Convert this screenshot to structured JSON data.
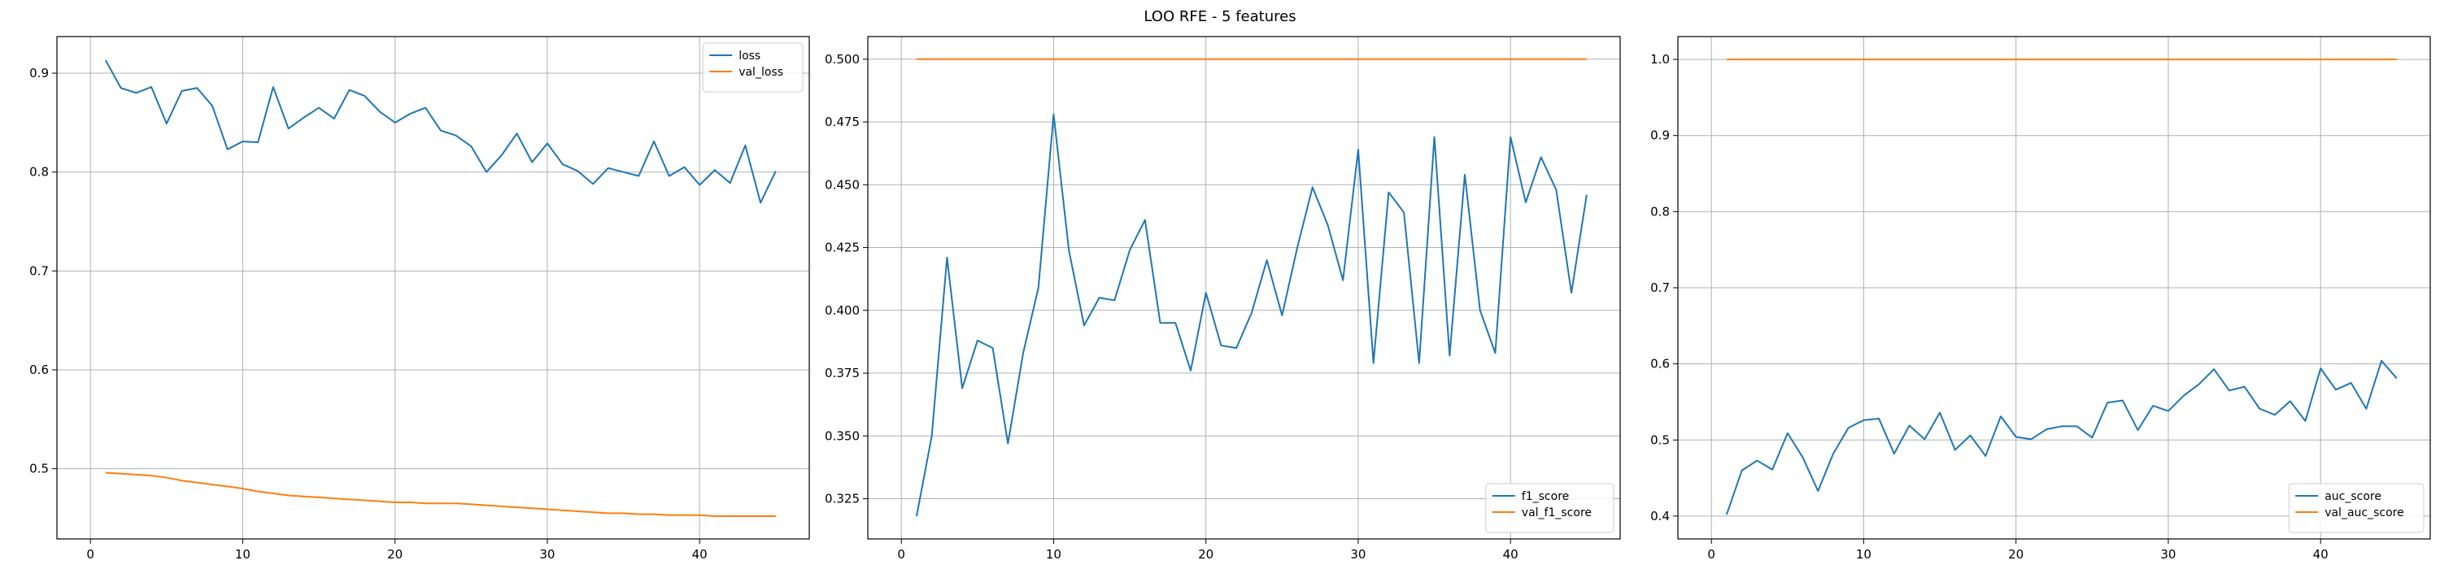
{
  "figure": {
    "title": "LOO RFE - 5 features"
  },
  "colors": {
    "series1": "#1f77b4",
    "series2": "#ff7f0e",
    "grid": "#b0b0b0",
    "axis": "#000000"
  },
  "chart_data": [
    {
      "type": "line",
      "title": "",
      "xlabel": "",
      "ylabel": "",
      "xlim": [
        -2.2,
        47.2
      ],
      "ylim": [
        0.429,
        0.937
      ],
      "xticks": [
        0,
        10,
        20,
        30,
        40
      ],
      "yticks": [
        0.5,
        0.6,
        0.7,
        0.8,
        0.9
      ],
      "ytick_labels": [
        "0.5",
        "0.6",
        "0.7",
        "0.8",
        "0.9"
      ],
      "grid": true,
      "legend_position": "upper-right",
      "series": [
        {
          "name": "loss",
          "x": [
            1,
            2,
            3,
            4,
            5,
            6,
            7,
            8,
            9,
            10,
            11,
            12,
            13,
            14,
            15,
            16,
            17,
            18,
            19,
            20,
            21,
            22,
            23,
            24,
            25,
            26,
            27,
            28,
            29,
            30,
            31,
            32,
            33,
            34,
            35,
            36,
            37,
            38,
            39,
            40,
            41,
            42,
            43,
            44,
            45
          ],
          "values": [
            0.913,
            0.885,
            0.88,
            0.886,
            0.849,
            0.882,
            0.885,
            0.867,
            0.823,
            0.831,
            0.83,
            0.886,
            0.844,
            0.855,
            0.865,
            0.854,
            0.883,
            0.877,
            0.861,
            0.85,
            0.859,
            0.865,
            0.842,
            0.837,
            0.826,
            0.8,
            0.817,
            0.839,
            0.81,
            0.829,
            0.808,
            0.801,
            0.788,
            0.804,
            0.8,
            0.796,
            0.831,
            0.796,
            0.805,
            0.787,
            0.802,
            0.789,
            0.827,
            0.769,
            0.801
          ]
        },
        {
          "name": "val_loss",
          "x": [
            1,
            2,
            3,
            4,
            5,
            6,
            7,
            8,
            9,
            10,
            11,
            12,
            13,
            14,
            15,
            16,
            17,
            18,
            19,
            20,
            21,
            22,
            23,
            24,
            25,
            26,
            27,
            28,
            29,
            30,
            31,
            32,
            33,
            34,
            35,
            36,
            37,
            38,
            39,
            40,
            41,
            42,
            43,
            44,
            45
          ],
          "values": [
            0.496,
            0.495,
            0.494,
            0.493,
            0.491,
            0.488,
            0.486,
            0.484,
            0.482,
            0.48,
            0.477,
            0.475,
            0.473,
            0.472,
            0.471,
            0.47,
            0.469,
            0.468,
            0.467,
            0.466,
            0.466,
            0.465,
            0.465,
            0.465,
            0.464,
            0.463,
            0.462,
            0.461,
            0.46,
            0.459,
            0.458,
            0.457,
            0.456,
            0.455,
            0.455,
            0.454,
            0.454,
            0.453,
            0.453,
            0.453,
            0.452,
            0.452,
            0.452,
            0.452,
            0.452
          ]
        }
      ]
    },
    {
      "type": "line",
      "title": "",
      "xlabel": "",
      "ylabel": "",
      "xlim": [
        -2.2,
        47.2
      ],
      "ylim": [
        0.309,
        0.509
      ],
      "xticks": [
        0,
        10,
        20,
        30,
        40
      ],
      "yticks": [
        0.325,
        0.35,
        0.375,
        0.4,
        0.425,
        0.45,
        0.475,
        0.5
      ],
      "ytick_labels": [
        "0.325",
        "0.350",
        "0.375",
        "0.400",
        "0.425",
        "0.450",
        "0.475",
        "0.500"
      ],
      "grid": true,
      "legend_position": "lower-right",
      "series": [
        {
          "name": "f1_score",
          "x": [
            1,
            2,
            3,
            4,
            5,
            6,
            7,
            8,
            9,
            10,
            11,
            12,
            13,
            14,
            15,
            16,
            17,
            18,
            19,
            20,
            21,
            22,
            23,
            24,
            25,
            26,
            27,
            28,
            29,
            30,
            31,
            32,
            33,
            34,
            35,
            36,
            37,
            38,
            39,
            40,
            41,
            42,
            43,
            44,
            45
          ],
          "values": [
            0.318,
            0.35,
            0.421,
            0.369,
            0.388,
            0.385,
            0.347,
            0.383,
            0.409,
            0.478,
            0.424,
            0.394,
            0.405,
            0.404,
            0.424,
            0.436,
            0.395,
            0.395,
            0.376,
            0.407,
            0.386,
            0.385,
            0.399,
            0.42,
            0.398,
            0.425,
            0.449,
            0.434,
            0.412,
            0.464,
            0.379,
            0.447,
            0.439,
            0.379,
            0.469,
            0.382,
            0.454,
            0.4,
            0.383,
            0.469,
            0.443,
            0.461,
            0.448,
            0.407,
            0.446
          ]
        },
        {
          "name": "val_f1_score",
          "x": [
            1,
            2,
            3,
            4,
            5,
            6,
            7,
            8,
            9,
            10,
            11,
            12,
            13,
            14,
            15,
            16,
            17,
            18,
            19,
            20,
            21,
            22,
            23,
            24,
            25,
            26,
            27,
            28,
            29,
            30,
            31,
            32,
            33,
            34,
            35,
            36,
            37,
            38,
            39,
            40,
            41,
            42,
            43,
            44,
            45
          ],
          "values": [
            0.5,
            0.5,
            0.5,
            0.5,
            0.5,
            0.5,
            0.5,
            0.5,
            0.5,
            0.5,
            0.5,
            0.5,
            0.5,
            0.5,
            0.5,
            0.5,
            0.5,
            0.5,
            0.5,
            0.5,
            0.5,
            0.5,
            0.5,
            0.5,
            0.5,
            0.5,
            0.5,
            0.5,
            0.5,
            0.5,
            0.5,
            0.5,
            0.5,
            0.5,
            0.5,
            0.5,
            0.5,
            0.5,
            0.5,
            0.5,
            0.5,
            0.5,
            0.5,
            0.5,
            0.5
          ]
        }
      ]
    },
    {
      "type": "line",
      "title": "",
      "xlabel": "",
      "ylabel": "",
      "xlim": [
        -2.2,
        47.2
      ],
      "ylim": [
        0.37,
        1.03
      ],
      "xticks": [
        0,
        10,
        20,
        30,
        40
      ],
      "yticks": [
        0.4,
        0.5,
        0.6,
        0.7,
        0.8,
        0.9,
        1.0
      ],
      "ytick_labels": [
        "0.4",
        "0.5",
        "0.6",
        "0.7",
        "0.8",
        "0.9",
        "1.0"
      ],
      "grid": true,
      "legend_position": "lower-right",
      "series": [
        {
          "name": "auc_score",
          "x": [
            1,
            2,
            3,
            4,
            5,
            6,
            7,
            8,
            9,
            10,
            11,
            12,
            13,
            14,
            15,
            16,
            17,
            18,
            19,
            20,
            21,
            22,
            23,
            24,
            25,
            26,
            27,
            28,
            29,
            30,
            31,
            32,
            33,
            34,
            35,
            36,
            37,
            38,
            39,
            40,
            41,
            42,
            43,
            44,
            45
          ],
          "values": [
            0.402,
            0.46,
            0.473,
            0.461,
            0.509,
            0.477,
            0.433,
            0.482,
            0.516,
            0.526,
            0.528,
            0.482,
            0.519,
            0.501,
            0.536,
            0.487,
            0.506,
            0.479,
            0.531,
            0.504,
            0.501,
            0.514,
            0.518,
            0.518,
            0.503,
            0.549,
            0.552,
            0.513,
            0.545,
            0.538,
            0.558,
            0.573,
            0.593,
            0.565,
            0.57,
            0.541,
            0.533,
            0.551,
            0.525,
            0.594,
            0.566,
            0.575,
            0.541,
            0.604,
            0.581
          ]
        },
        {
          "name": "val_auc_score",
          "x": [
            1,
            2,
            3,
            4,
            5,
            6,
            7,
            8,
            9,
            10,
            11,
            12,
            13,
            14,
            15,
            16,
            17,
            18,
            19,
            20,
            21,
            22,
            23,
            24,
            25,
            26,
            27,
            28,
            29,
            30,
            31,
            32,
            33,
            34,
            35,
            36,
            37,
            38,
            39,
            40,
            41,
            42,
            43,
            44,
            45
          ],
          "values": [
            1.0,
            1.0,
            1.0,
            1.0,
            1.0,
            1.0,
            1.0,
            1.0,
            1.0,
            1.0,
            1.0,
            1.0,
            1.0,
            1.0,
            1.0,
            1.0,
            1.0,
            1.0,
            1.0,
            1.0,
            1.0,
            1.0,
            1.0,
            1.0,
            1.0,
            1.0,
            1.0,
            1.0,
            1.0,
            1.0,
            1.0,
            1.0,
            1.0,
            1.0,
            1.0,
            1.0,
            1.0,
            1.0,
            1.0,
            1.0,
            1.0,
            1.0,
            1.0,
            1.0,
            1.0
          ]
        }
      ]
    }
  ]
}
